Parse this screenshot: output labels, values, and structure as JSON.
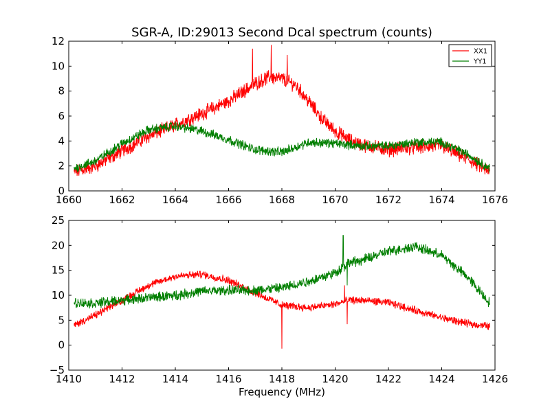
{
  "colors": {
    "xx1": "#ff0000",
    "yy1": "#007f00"
  },
  "chart_data": [
    {
      "type": "line",
      "title": "SGR-A, ID:29013 Second Dcal spectrum (counts)",
      "xlabel": "",
      "ylabel": "",
      "xlim": [
        1660,
        1676
      ],
      "ylim": [
        0,
        12
      ],
      "xticks": [
        "1660",
        "1662",
        "1664",
        "1666",
        "1668",
        "1670",
        "1672",
        "1674",
        "1676"
      ],
      "yticks": [
        "0",
        "2",
        "4",
        "6",
        "8",
        "10",
        "12"
      ],
      "legend": {
        "placement": "top-right",
        "entries": [
          "XX1",
          "YY1"
        ]
      },
      "grid": false,
      "series": [
        {
          "name": "XX1",
          "color": "#ff0000",
          "noise": 0.45,
          "x": [
            1660.2,
            1661,
            1662,
            1663,
            1664,
            1665,
            1666,
            1667,
            1667.5,
            1668,
            1668.5,
            1669,
            1669.5,
            1670,
            1670.5,
            1671,
            1672,
            1673,
            1674,
            1675,
            1675.8
          ],
          "y": [
            1.5,
            2.0,
            3.2,
            4.4,
            5.3,
            6.2,
            7.2,
            8.6,
            9.1,
            9.0,
            8.5,
            7.2,
            5.8,
            4.8,
            4.1,
            3.7,
            3.3,
            3.5,
            3.6,
            2.5,
            1.5
          ]
        },
        {
          "name": "YY1",
          "color": "#007f00",
          "noise": 0.3,
          "x": [
            1660.2,
            1661,
            1662,
            1663,
            1664,
            1665,
            1666,
            1667,
            1668,
            1669,
            1670,
            1671,
            1672,
            1673,
            1674,
            1675,
            1675.8
          ],
          "y": [
            1.8,
            2.4,
            3.8,
            4.9,
            5.2,
            4.8,
            4.1,
            3.3,
            3.1,
            3.9,
            3.8,
            3.6,
            3.6,
            3.9,
            3.9,
            2.9,
            1.8
          ]
        }
      ],
      "spikes": [
        {
          "series": "XX1",
          "x": 1667.6,
          "y": 11.7
        },
        {
          "series": "XX1",
          "x": 1666.9,
          "y": 11.4
        },
        {
          "series": "XX1",
          "x": 1668.2,
          "y": 10.9
        }
      ]
    },
    {
      "type": "line",
      "title": "",
      "xlabel": "Frequency (MHz)",
      "ylabel": "",
      "xlim": [
        1410,
        1426
      ],
      "ylim": [
        -5,
        25
      ],
      "xticks": [
        "1410",
        "1412",
        "1414",
        "1416",
        "1418",
        "1420",
        "1422",
        "1424",
        "1426"
      ],
      "yticks": [
        "−5",
        "0",
        "5",
        "10",
        "15",
        "20",
        "25"
      ],
      "grid": false,
      "series": [
        {
          "name": "XX1",
          "color": "#ff0000",
          "noise": 0.6,
          "x": [
            1410.2,
            1411,
            1412,
            1413,
            1414,
            1415,
            1416,
            1417,
            1418,
            1419,
            1420,
            1420.5,
            1421,
            1422,
            1423,
            1424,
            1425,
            1425.8
          ],
          "y": [
            4.0,
            6.0,
            9.0,
            12.0,
            13.8,
            14.2,
            13.0,
            10.5,
            8.0,
            7.5,
            8.2,
            9.0,
            9.0,
            8.5,
            7.0,
            5.5,
            4.3,
            3.8
          ]
        },
        {
          "name": "YY1",
          "color": "#007f00",
          "noise": 0.8,
          "x": [
            1410.2,
            1411,
            1412,
            1413,
            1414,
            1415,
            1416,
            1417,
            1418,
            1419,
            1420,
            1420.5,
            1421,
            1422,
            1423,
            1424,
            1425,
            1425.8
          ],
          "y": [
            8.5,
            8.4,
            9.0,
            9.5,
            10.0,
            10.8,
            11.0,
            11.0,
            11.5,
            12.8,
            14.5,
            16.5,
            17.0,
            18.8,
            19.8,
            18.0,
            13.5,
            8.5
          ]
        }
      ],
      "spikes": [
        {
          "series": "XX1",
          "x": 1418.0,
          "y": -0.7
        },
        {
          "series": "XX1",
          "x": 1420.35,
          "y": 12.0
        },
        {
          "series": "XX1",
          "x": 1420.45,
          "y": 4.2
        },
        {
          "series": "YY1",
          "x": 1420.3,
          "y": 22.0
        },
        {
          "series": "YY1",
          "x": 1420.45,
          "y": 12.0
        }
      ]
    }
  ]
}
